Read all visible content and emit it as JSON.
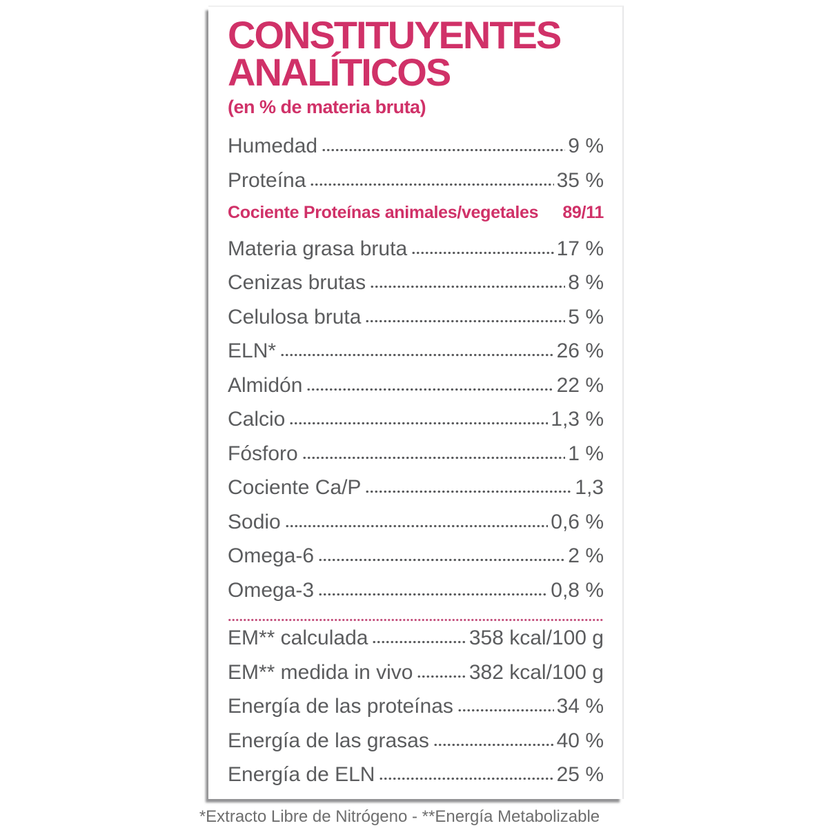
{
  "panel": {
    "title_line1": "CONSTITUYENTES",
    "title_line2": "ANALÍTICOS",
    "subtitle": "(en % de materia bruta)",
    "rows_before_highlight": [
      {
        "label": "Humedad",
        "value": "9 %"
      },
      {
        "label": "Proteína",
        "value": "35 %"
      }
    ],
    "highlight_row": {
      "label": "Cociente Proteínas animales/vegetales",
      "value": "89/11"
    },
    "rows_main": [
      {
        "label": "Materia grasa bruta",
        "value": "17 %"
      },
      {
        "label": "Cenizas brutas",
        "value": "8 %"
      },
      {
        "label": "Celulosa bruta",
        "value": "5 %"
      },
      {
        "label": "ELN*",
        "value": "26 %"
      },
      {
        "label": "Almidón",
        "value": "22 %"
      },
      {
        "label": "Calcio",
        "value": "1,3 %"
      },
      {
        "label": "Fósforo",
        "value": "1 %"
      },
      {
        "label": "Cociente Ca/P",
        "value": "1,3"
      },
      {
        "label": "Sodio",
        "value": "0,6 %"
      },
      {
        "label": "Omega-6",
        "value": "2 %"
      },
      {
        "label": "Omega-3",
        "value": "0,8 %"
      }
    ],
    "rows_energy": [
      {
        "label": "EM** calculada",
        "value": "358 kcal/100 g"
      },
      {
        "label": "EM** medida in vivo",
        "value": "382 kcal/100 g"
      },
      {
        "label": "Energía de las proteínas",
        "value": "34 %"
      },
      {
        "label": "Energía de las grasas",
        "value": "40 %"
      },
      {
        "label": "Energía de ELN",
        "value": "25 %"
      }
    ],
    "colors": {
      "accent_pink": "#d03168",
      "row_text_gray": "#5b5c5e",
      "footnote_gray": "#6e6e6e"
    }
  },
  "footer": {
    "note": "*Extracto Libre de Nitrógeno - **Energía Metabolizable"
  }
}
